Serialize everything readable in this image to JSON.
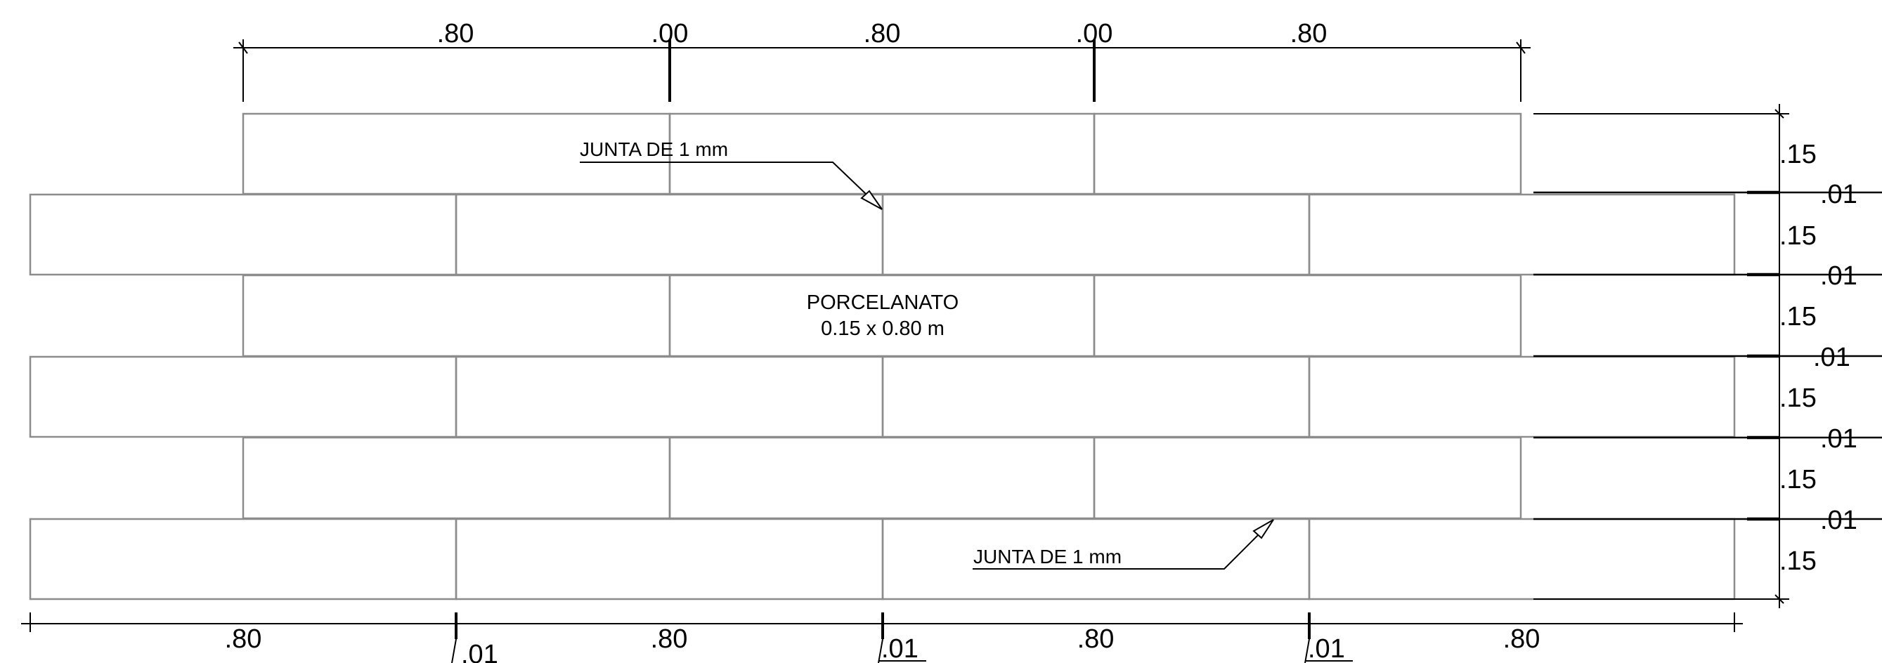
{
  "colors": {
    "tile_stroke": "#8c8c8c",
    "line": "#000000",
    "background": "#ffffff"
  },
  "dimensions": {
    "top": [
      ".80",
      ".00",
      ".80",
      ".00",
      ".80"
    ],
    "bottom": [
      ".80",
      ".80",
      ".80",
      ".80"
    ],
    "bottom_joints": [
      ".01",
      ".01",
      ".01"
    ],
    "right_tiles": [
      ".15",
      ".15",
      ".15",
      ".15",
      ".15",
      ".15"
    ],
    "right_joints": [
      ".01",
      ".01",
      ".01",
      ".01",
      ".01"
    ]
  },
  "notes": {
    "joint_top": "JUNTA DE 1 mm",
    "joint_bottom": "JUNTA DE 1 mm"
  },
  "material": {
    "name": "PORCELANATO",
    "size": "0.15 x 0.80 m"
  }
}
